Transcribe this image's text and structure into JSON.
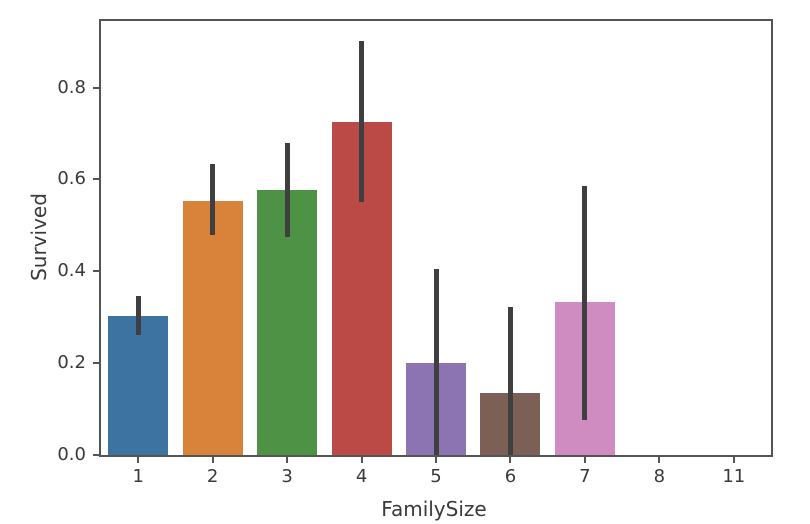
{
  "chart_data": {
    "type": "bar",
    "title": "",
    "xlabel": "FamilySize",
    "ylabel": "Survived",
    "categories": [
      "1",
      "2",
      "3",
      "4",
      "5",
      "6",
      "7",
      "8",
      "11"
    ],
    "values": [
      0.303,
      0.553,
      0.578,
      0.724,
      0.2,
      0.136,
      0.333,
      0.0,
      0.0
    ],
    "error_bars": [
      [
        0.261,
        0.347
      ],
      [
        0.478,
        0.634
      ],
      [
        0.474,
        0.68
      ],
      [
        0.55,
        0.902
      ],
      [
        0.0,
        0.405
      ],
      [
        0.0,
        0.323
      ],
      [
        0.077,
        0.586
      ],
      null,
      null
    ],
    "bar_colors": [
      "#3d73a0",
      "#d98239",
      "#4e9246",
      "#bb4a47",
      "#8b74b1",
      "#7d6055",
      "#cf8cc0",
      "#999999",
      "#999999"
    ],
    "yticks": [
      "0.0",
      "0.2",
      "0.4",
      "0.6",
      "0.8"
    ],
    "ylim": [
      0,
      0.945
    ],
    "grid": false,
    "legend": null,
    "error_bar_color": "#3f3f3f",
    "axis_color": "#545454",
    "text_color": "#3a3a3a",
    "background": "#ffffff"
  }
}
